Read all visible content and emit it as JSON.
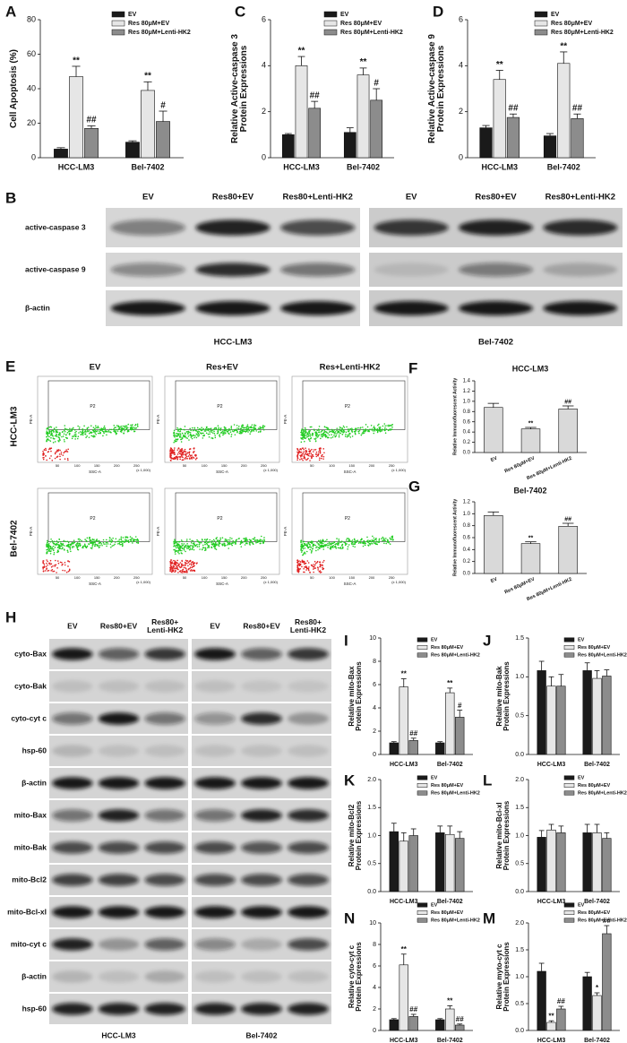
{
  "chart_data": [
    {
      "panel": "A",
      "type": "bar",
      "ylabel": [
        "Cell Apoptosis (%)"
      ],
      "categories": [
        "HCC-LM3",
        "Bel-7402"
      ],
      "ylim": [
        0,
        80
      ],
      "yticks": [
        0,
        20,
        40,
        60,
        80
      ],
      "series": [
        {
          "name": "EV",
          "color": "#1a1a1a",
          "values": [
            5,
            9
          ],
          "errors": [
            0.8,
            0.8
          ]
        },
        {
          "name": "Res 80μM+EV",
          "color": "#e6e6e6",
          "values": [
            47,
            39
          ],
          "errors": [
            6,
            5
          ],
          "significance": [
            "**",
            "**"
          ]
        },
        {
          "name": "Res 80μM+Lenti-HK2",
          "color": "#8c8c8c",
          "values": [
            17,
            21
          ],
          "errors": [
            1.5,
            6
          ],
          "significance": [
            "##",
            "#"
          ]
        }
      ]
    },
    {
      "panel": "C",
      "type": "bar",
      "ylabel": [
        "Relative Active-caspase 3",
        "Protein Expressions"
      ],
      "categories": [
        "HCC-LM3",
        "Bel-7402"
      ],
      "ylim": [
        0,
        6
      ],
      "yticks": [
        0,
        2,
        4,
        6
      ],
      "series": [
        {
          "name": "EV",
          "color": "#1a1a1a",
          "values": [
            1,
            1.1
          ],
          "errors": [
            0.05,
            0.2
          ]
        },
        {
          "name": "Res 80μM+EV",
          "color": "#e6e6e6",
          "values": [
            4,
            3.6
          ],
          "errors": [
            0.4,
            0.3
          ],
          "significance": [
            "**",
            "**"
          ]
        },
        {
          "name": "Res 80μM+Lenti-HK2",
          "color": "#8c8c8c",
          "values": [
            2.15,
            2.5
          ],
          "errors": [
            0.3,
            0.5
          ],
          "significance": [
            "##",
            "#"
          ]
        }
      ]
    },
    {
      "panel": "D",
      "type": "bar",
      "ylabel": [
        "Relative Active-caspase 9",
        "Protein Expressions"
      ],
      "categories": [
        "HCC-LM3",
        "Bel-7402"
      ],
      "ylim": [
        0,
        6
      ],
      "yticks": [
        0,
        2,
        4,
        6
      ],
      "series": [
        {
          "name": "EV",
          "color": "#1a1a1a",
          "values": [
            1.3,
            0.95
          ],
          "errors": [
            0.1,
            0.1
          ]
        },
        {
          "name": "Res 80μM+EV",
          "color": "#e6e6e6",
          "values": [
            3.4,
            4.1
          ],
          "errors": [
            0.4,
            0.5
          ],
          "significance": [
            "**",
            "**"
          ]
        },
        {
          "name": "Res 80μM+Lenti-HK2",
          "color": "#8c8c8c",
          "values": [
            1.75,
            1.7
          ],
          "errors": [
            0.15,
            0.2
          ],
          "significance": [
            "##",
            "##"
          ]
        }
      ]
    },
    {
      "panel": "F",
      "type": "bar",
      "title": "HCC-LM3",
      "ylabel": [
        "Relative Immunofluorescent Activity"
      ],
      "categories": [
        "EV",
        "Res 80μM+EV",
        "Res 80μM+Lenti-HK2"
      ],
      "values": [
        0.88,
        0.46,
        0.85
      ],
      "errors": [
        0.08,
        0.03,
        0.06
      ],
      "significance": [
        null,
        "**",
        "##"
      ],
      "color": "#d9d9d9",
      "ylim": [
        0,
        1.4
      ],
      "yticks": [
        {
          "value": 0,
          "label": "0.0"
        },
        0.2,
        0.4,
        0.6,
        0.8,
        {
          "value": 1,
          "label": "1.0"
        },
        1.2,
        1.4
      ]
    },
    {
      "panel": "G",
      "type": "bar",
      "title": "Bel-7402",
      "ylabel": [
        "Relative Immunofluorescent Activity"
      ],
      "categories": [
        "EV",
        "Res 80μM+EV",
        "Res 80μM+Lenti-HK2"
      ],
      "values": [
        0.97,
        0.5,
        0.79
      ],
      "errors": [
        0.06,
        0.03,
        0.05
      ],
      "significance": [
        null,
        "**",
        "##"
      ],
      "color": "#d9d9d9",
      "ylim": [
        0,
        1.2
      ],
      "yticks": [
        {
          "value": 0,
          "label": "0.0"
        },
        0.2,
        0.4,
        0.6,
        0.8,
        {
          "value": 1,
          "label": "1.0"
        },
        1.2
      ]
    },
    {
      "panel": "I",
      "type": "bar",
      "ylabel": [
        "Relative mito-Bax",
        "Protein Expressions"
      ],
      "categories": [
        "HCC-LM3",
        "Bel-7402"
      ],
      "ylim": [
        0,
        10
      ],
      "yticks": [
        0,
        2,
        4,
        6,
        8,
        10
      ],
      "series": [
        {
          "name": "EV",
          "color": "#1a1a1a",
          "values": [
            1,
            1
          ],
          "errors": [
            0.1,
            0.1
          ]
        },
        {
          "name": "Res 80μM+EV",
          "color": "#e6e6e6",
          "values": [
            5.8,
            5.3
          ],
          "errors": [
            0.7,
            0.4
          ],
          "significance": [
            "**",
            "**"
          ]
        },
        {
          "name": "Res 80μM+Lenti-HK2",
          "color": "#8c8c8c",
          "values": [
            1.2,
            3.2
          ],
          "errors": [
            0.2,
            0.6
          ],
          "significance": [
            "##",
            "#"
          ]
        }
      ]
    },
    {
      "panel": "J",
      "type": "bar",
      "ylabel": [
        "Relative mito-Bak",
        "Protein Expressions"
      ],
      "categories": [
        "HCC-LM3",
        "Bel-7402"
      ],
      "ylim": [
        0,
        1.5
      ],
      "yticks": [
        {
          "value": 0,
          "label": "0.0"
        },
        0.5,
        {
          "value": 1,
          "label": "1.0"
        },
        1.5
      ],
      "series": [
        {
          "name": "EV",
          "color": "#1a1a1a",
          "values": [
            1.08,
            1.08
          ],
          "errors": [
            0.12,
            0.1
          ]
        },
        {
          "name": "Res 80μM+EV",
          "color": "#e6e6e6",
          "values": [
            0.88,
            0.98
          ],
          "errors": [
            0.12,
            0.1
          ]
        },
        {
          "name": "Res 80μM+Lenti-HK2",
          "color": "#8c8c8c",
          "values": [
            0.88,
            1.01
          ],
          "errors": [
            0.15,
            0.08
          ]
        }
      ]
    },
    {
      "panel": "K",
      "type": "bar",
      "ylabel": [
        "Relative mito-Bcl2",
        "Protein Expressions"
      ],
      "categories": [
        "HCC-LM3",
        "Bel-7402"
      ],
      "ylim": [
        0,
        2
      ],
      "yticks": [
        {
          "value": 0,
          "label": "0.0"
        },
        0.5,
        {
          "value": 1,
          "label": "1.0"
        },
        1.5,
        {
          "value": 2,
          "label": "2.0"
        }
      ],
      "series": [
        {
          "name": "EV",
          "color": "#1a1a1a",
          "values": [
            1.07,
            1.05
          ],
          "errors": [
            0.15,
            0.12
          ]
        },
        {
          "name": "Res 80μM+EV",
          "color": "#e6e6e6",
          "values": [
            0.9,
            1.02
          ],
          "errors": [
            0.15,
            0.15
          ]
        },
        {
          "name": "Res 80μM+Lenti-HK2",
          "color": "#8c8c8c",
          "values": [
            1.0,
            0.95
          ],
          "errors": [
            0.12,
            0.12
          ]
        }
      ]
    },
    {
      "panel": "L",
      "type": "bar",
      "ylabel": [
        "Relative mito-Bcl-xl",
        "Protein Expressions"
      ],
      "categories": [
        "HCC-LM3",
        "Bel-7402"
      ],
      "ylim": [
        0,
        2
      ],
      "yticks": [
        {
          "value": 0,
          "label": "0.0"
        },
        0.5,
        {
          "value": 1,
          "label": "1.0"
        },
        1.5,
        {
          "value": 2,
          "label": "2.0"
        }
      ],
      "series": [
        {
          "name": "EV",
          "color": "#1a1a1a",
          "values": [
            0.97,
            1.05
          ],
          "errors": [
            0.12,
            0.15
          ]
        },
        {
          "name": "Res 80μM+EV",
          "color": "#e6e6e6",
          "values": [
            1.1,
            1.05
          ],
          "errors": [
            0.1,
            0.15
          ]
        },
        {
          "name": "Res 80μM+Lenti-HK2",
          "color": "#8c8c8c",
          "values": [
            1.05,
            0.95
          ],
          "errors": [
            0.12,
            0.1
          ]
        }
      ]
    },
    {
      "panel": "N",
      "type": "bar",
      "ylabel": [
        "Relative cyto-cyt c",
        "Protein Expressions"
      ],
      "categories": [
        "HCC-LM3",
        "Bel-7402"
      ],
      "ylim": [
        0,
        10
      ],
      "yticks": [
        0,
        2,
        4,
        6,
        8,
        10
      ],
      "series": [
        {
          "name": "EV",
          "color": "#1a1a1a",
          "values": [
            1,
            1
          ],
          "errors": [
            0.1,
            0.1
          ]
        },
        {
          "name": "Res 80μM+EV",
          "color": "#e6e6e6",
          "values": [
            6.1,
            2.0
          ],
          "errors": [
            1.0,
            0.3
          ],
          "significance": [
            "**",
            "**"
          ]
        },
        {
          "name": "Res 80μM+Lenti-HK2",
          "color": "#8c8c8c",
          "values": [
            1.3,
            0.5
          ],
          "errors": [
            0.2,
            0.1
          ],
          "significance": [
            "##",
            "##"
          ]
        }
      ]
    },
    {
      "panel": "M",
      "type": "bar",
      "ylabel": [
        "Relative myto-cyt c",
        "Protein Expressions"
      ],
      "categories": [
        "HCC-LM3",
        "Bel-7402"
      ],
      "ylim": [
        0,
        2
      ],
      "yticks": [
        {
          "value": 0,
          "label": "0.0"
        },
        0.5,
        {
          "value": 1,
          "label": "1.0"
        },
        1.5,
        {
          "value": 2,
          "label": "2.0"
        }
      ],
      "series": [
        {
          "name": "EV",
          "color": "#1a1a1a",
          "values": [
            1.1,
            1.0
          ],
          "errors": [
            0.15,
            0.08
          ]
        },
        {
          "name": "Res 80μM+EV",
          "color": "#e6e6e6",
          "values": [
            0.15,
            0.65
          ],
          "errors": [
            0.03,
            0.05
          ],
          "significance": [
            "**",
            "*"
          ]
        },
        {
          "name": "Res 80μM+Lenti-HK2",
          "color": "#8c8c8c",
          "values": [
            0.4,
            1.8
          ],
          "errors": [
            0.05,
            0.15
          ],
          "significance": [
            "##",
            "##"
          ]
        }
      ]
    }
  ],
  "blot_b": {
    "panel": "B",
    "columns": [
      "EV",
      "Res80+EV",
      "Res80+Lenti-HK2"
    ],
    "rows": [
      "active-caspase 3",
      "active-caspase 9",
      "β-actin"
    ],
    "groups": [
      "HCC-LM3",
      "Bel-7402"
    ]
  },
  "flow_e": {
    "panel": "E",
    "columns": [
      "EV",
      "Res+EV",
      "Res+Lenti-HK2"
    ],
    "rows": [
      "HCC-LM3",
      "Bel-7402"
    ],
    "gate": "P2",
    "xlabel": "SSC-A",
    "ylabel": "PE-A",
    "xticks": [
      50,
      100,
      150,
      200,
      250
    ],
    "xunit": "(x 1,000)"
  },
  "blot_h": {
    "panel": "H",
    "columns": [
      [
        "EV"
      ],
      [
        "Res80+EV"
      ],
      [
        "Res80+",
        "Lenti-HK2"
      ]
    ],
    "rows": [
      "cyto-Bax",
      "cyto-Bak",
      "cyto-cyt c",
      "hsp-60",
      "β-actin",
      "mito-Bax",
      "mito-Bak",
      "mito-Bcl2",
      "mito-Bcl-xl",
      "mito-cyt c",
      "β-actin",
      "hsp-60"
    ],
    "groups": [
      "HCC-LM3",
      "Bel-7402"
    ]
  }
}
